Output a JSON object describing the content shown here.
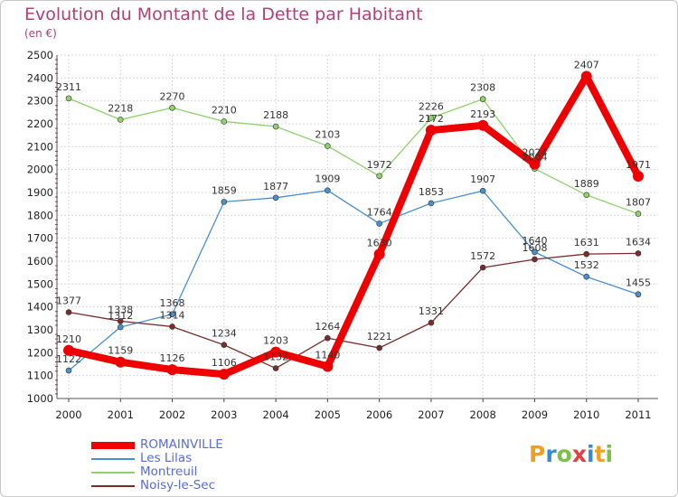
{
  "chart_data": {
    "type": "line",
    "title": "Evolution du Montant de la Dette par Habitant",
    "subtitle": "(en €)",
    "x": [
      "2000",
      "2001",
      "2002",
      "2003",
      "2004",
      "2005",
      "2006",
      "2007",
      "2008",
      "2009",
      "2010",
      "2011"
    ],
    "yticks": [
      "1000",
      "1100",
      "1200",
      "1300",
      "1400",
      "1500",
      "1600",
      "1700",
      "1800",
      "1900",
      "2000",
      "2100",
      "2200",
      "2300",
      "2400",
      "2500"
    ],
    "ylim": [
      1000,
      2500
    ],
    "grid": true,
    "legend_position": "bottom-left",
    "series": [
      {
        "name": "ROMAINVILLE",
        "color": "#ee0000",
        "values": [
          1210,
          1159,
          1126,
          1106,
          1203,
          1140,
          1630,
          2172,
          2193,
          2024,
          2407,
          1971
        ]
      },
      {
        "name": "Les Lilas",
        "color": "#4a90cf",
        "values": [
          1122,
          1312,
          1368,
          1859,
          1877,
          1909,
          1764,
          1853,
          1907,
          1640,
          1532,
          1455
        ]
      },
      {
        "name": "Montreuil",
        "color": "#8fd16a",
        "values": [
          2311,
          2218,
          2270,
          2210,
          2188,
          2103,
          1972,
          2226,
          2308,
          2004,
          1889,
          1807
        ]
      },
      {
        "name": "Noisy-le-Sec",
        "color": "#7a2c2c",
        "values": [
          1377,
          1338,
          1314,
          1234,
          1132,
          1264,
          1221,
          1331,
          1572,
          1608,
          1631,
          1634
        ]
      }
    ]
  },
  "logo": {
    "letters": [
      "P",
      "r",
      "o",
      "x",
      "i",
      "t",
      "i"
    ],
    "colors": [
      "#f0a020",
      "#3a8ad0",
      "#7cc04a",
      "#e04040",
      "#3a8ad0",
      "#f0a020",
      "#7cc04a"
    ]
  }
}
